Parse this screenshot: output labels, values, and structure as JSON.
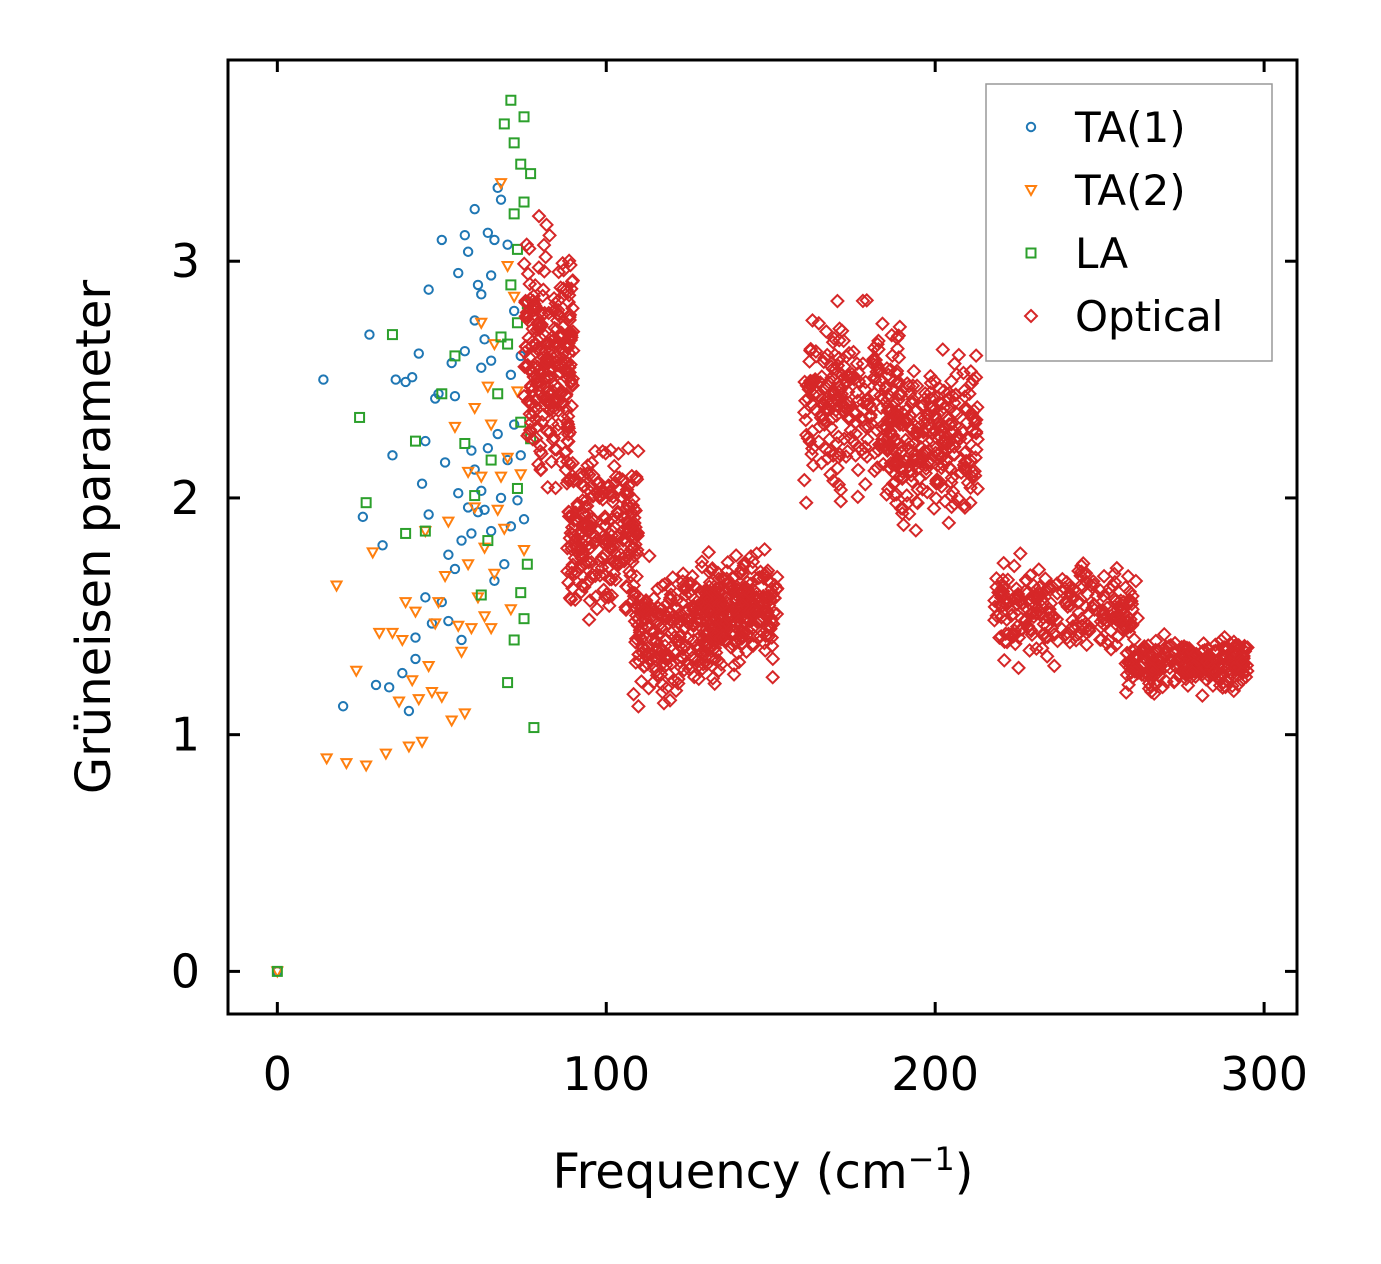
{
  "chart_data": {
    "type": "scatter",
    "xlabel": "Frequency (cm",
    "xlabel_sup": "−1",
    "xlabel_end": ")",
    "ylabel": "Grüneisen parameter",
    "xlim": [
      -15,
      310
    ],
    "ylim": [
      -0.18,
      3.85
    ],
    "xticks": [
      0,
      100,
      200,
      300
    ],
    "yticks": [
      0,
      1,
      2,
      3
    ],
    "legend_position": "top-right",
    "series": [
      {
        "name": "TA(1)",
        "marker": "circle",
        "color": "#1f77b4",
        "x": [
          0,
          14,
          20,
          26,
          28,
          30,
          32,
          34,
          35,
          36,
          38,
          39,
          40,
          41,
          42,
          42,
          43,
          44,
          45,
          45,
          46,
          46,
          47,
          48,
          49,
          50,
          50,
          51,
          52,
          52,
          53,
          54,
          54,
          55,
          55,
          56,
          56,
          57,
          57,
          58,
          58,
          59,
          59,
          60,
          60,
          60,
          61,
          61,
          62,
          62,
          62,
          63,
          63,
          64,
          64,
          65,
          65,
          65,
          66,
          66,
          67,
          67,
          68,
          68,
          69,
          70,
          70,
          71,
          71,
          72,
          72,
          73,
          74,
          74,
          75
        ],
        "y": [
          0,
          2.5,
          1.12,
          1.92,
          2.69,
          1.21,
          1.8,
          1.2,
          2.18,
          2.5,
          1.26,
          2.49,
          1.1,
          2.51,
          1.32,
          1.41,
          2.61,
          2.06,
          2.24,
          1.58,
          2.88,
          1.93,
          1.47,
          2.42,
          2.44,
          1.56,
          3.09,
          2.15,
          1.48,
          1.76,
          2.57,
          2.43,
          1.7,
          2.95,
          2.02,
          1.4,
          1.82,
          3.11,
          2.62,
          1.96,
          3.04,
          2.2,
          1.85,
          3.22,
          2.75,
          2.12,
          2.9,
          1.94,
          2.03,
          2.86,
          2.55,
          2.67,
          1.95,
          3.12,
          2.21,
          2.58,
          2.94,
          1.86,
          1.65,
          3.09,
          3.31,
          2.27,
          2.0,
          3.26,
          1.72,
          2.16,
          3.07,
          1.88,
          2.52,
          2.79,
          2.31,
          1.99,
          2.6,
          2.18,
          1.91
        ]
      },
      {
        "name": "TA(2)",
        "marker": "triangle",
        "color": "#ff7f0e",
        "x": [
          0,
          15,
          18,
          21,
          24,
          27,
          29,
          31,
          33,
          35,
          37,
          38,
          39,
          40,
          41,
          42,
          43,
          44,
          45,
          46,
          47,
          48,
          49,
          50,
          51,
          52,
          53,
          54,
          55,
          56,
          57,
          58,
          58,
          59,
          60,
          60,
          61,
          62,
          62,
          63,
          63,
          64,
          65,
          65,
          66,
          66,
          67,
          68,
          68,
          69,
          70,
          70,
          71,
          72,
          73,
          74,
          75
        ],
        "y": [
          0,
          0.9,
          1.63,
          0.88,
          1.27,
          0.87,
          1.77,
          1.43,
          0.92,
          1.43,
          1.14,
          1.4,
          1.56,
          0.95,
          1.23,
          1.52,
          1.15,
          0.97,
          1.86,
          1.29,
          1.18,
          1.47,
          1.56,
          1.16,
          1.67,
          1.9,
          1.06,
          2.3,
          1.46,
          1.35,
          1.09,
          1.72,
          2.11,
          1.45,
          1.96,
          2.38,
          1.58,
          2.09,
          2.74,
          1.5,
          1.79,
          2.47,
          1.45,
          2.31,
          1.68,
          2.65,
          1.95,
          2.09,
          3.33,
          1.87,
          2.17,
          2.98,
          1.53,
          2.85,
          2.45,
          2.1,
          1.78
        ]
      },
      {
        "name": "LA",
        "marker": "square",
        "color": "#2ca02c",
        "x": [
          0,
          25,
          27,
          35,
          39,
          42,
          45,
          50,
          54,
          57,
          60,
          62,
          64,
          65,
          67,
          68,
          69,
          70,
          70,
          71,
          71,
          72,
          72,
          72,
          73,
          73,
          73,
          74,
          74,
          74,
          75,
          75,
          75,
          76,
          76,
          77,
          77,
          78
        ],
        "y": [
          0,
          2.34,
          1.98,
          2.69,
          1.85,
          2.24,
          1.86,
          2.44,
          2.6,
          2.23,
          2.01,
          1.59,
          1.82,
          2.16,
          2.44,
          2.68,
          3.58,
          1.22,
          2.65,
          2.9,
          3.68,
          1.4,
          3.2,
          3.5,
          2.04,
          2.74,
          3.05,
          1.6,
          2.32,
          3.41,
          1.49,
          3.25,
          3.61,
          2.82,
          1.72,
          3.37,
          2.25,
          1.03
        ]
      },
      {
        "name": "Optical",
        "marker": "diamond",
        "color": "#d62728",
        "clusters": [
          {
            "xs": [
              75,
              90
            ],
            "y": [
              1.9,
              3.3
            ]
          },
          {
            "xs": [
              88,
              110
            ],
            "y": [
              1.4,
              2.3
            ]
          },
          {
            "xs": [
              108,
              135
            ],
            "y": [
              1.05,
              1.8
            ]
          },
          {
            "xs": [
              130,
              152
            ],
            "y": [
              1.2,
              1.85
            ]
          },
          {
            "xs": [
              160,
              190
            ],
            "y": [
              1.9,
              2.9
            ]
          },
          {
            "xs": [
              185,
              213
            ],
            "y": [
              1.8,
              2.7
            ]
          },
          {
            "xs": [
              218,
              262
            ],
            "y": [
              1.25,
              1.8
            ]
          },
          {
            "xs": [
              258,
              295
            ],
            "y": [
              1.15,
              1.45
            ]
          }
        ]
      }
    ]
  }
}
